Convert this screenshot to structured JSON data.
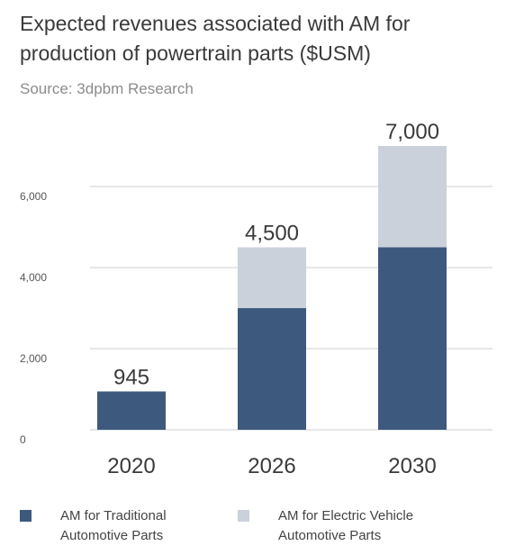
{
  "header": {
    "title": "Expected revenues associated with AM for production of powertrain parts  ($USM)",
    "subtitle": "Source: 3dpbm Research"
  },
  "colors": {
    "traditional": "#3d5a7e",
    "ev": "#cbd1db",
    "grid": "#cfcfcf"
  },
  "chart_data": {
    "type": "bar",
    "stacked": true,
    "categories": [
      "2020",
      "2026",
      "2030"
    ],
    "series": [
      {
        "name": "AM for Traditional Automotive Parts",
        "values": [
          945,
          3000,
          4500
        ]
      },
      {
        "name": "AM for Electric Vehicle Automotive Parts",
        "values": [
          0,
          1500,
          2500
        ]
      }
    ],
    "totals": [
      "945",
      "4,500",
      "7,000"
    ],
    "ylim": [
      0,
      7000
    ],
    "yticks": [
      0,
      2000,
      4000,
      6000
    ],
    "ytick_labels": [
      "0",
      "2,000",
      "4,000",
      "6,000"
    ],
    "grid": true,
    "legend_position": "bottom"
  },
  "legend": {
    "traditional_line1": "AM for Traditional",
    "traditional_line2": "Automotive Parts",
    "ev_line1": "AM for Electric Vehicle",
    "ev_line2": "Automotive Parts"
  }
}
